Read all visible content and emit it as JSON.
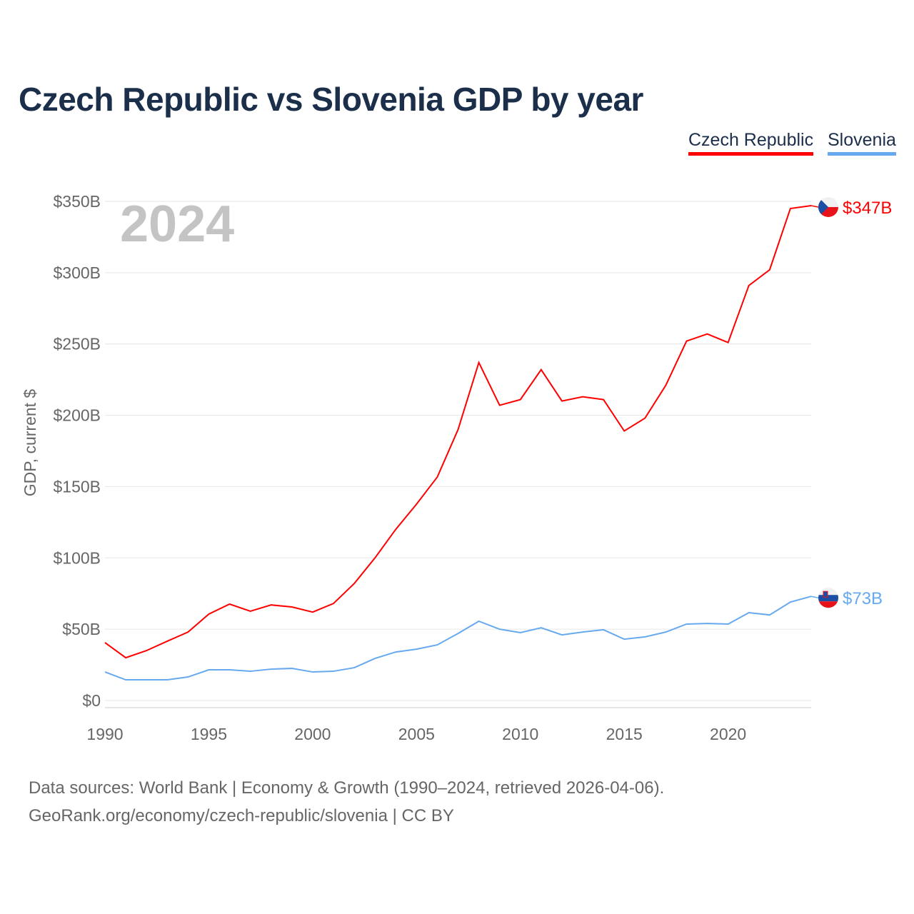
{
  "chart_data": {
    "type": "line",
    "title": "Czech Republic vs Slovenia GDP by year",
    "ylabel": "GDP, current $",
    "xlabel": "",
    "year_label": "2024",
    "x": [
      1990,
      1991,
      1992,
      1993,
      1994,
      1995,
      1996,
      1997,
      1998,
      1999,
      2000,
      2001,
      2002,
      2003,
      2004,
      2005,
      2006,
      2007,
      2008,
      2009,
      2010,
      2011,
      2012,
      2013,
      2014,
      2015,
      2016,
      2017,
      2018,
      2019,
      2020,
      2021,
      2022,
      2023,
      2024
    ],
    "xlim": [
      1990,
      2024
    ],
    "ylim": [
      0,
      350
    ],
    "xticks": [
      1990,
      1995,
      2000,
      2005,
      2010,
      2015,
      2020
    ],
    "yticks": [
      0,
      50,
      100,
      150,
      200,
      250,
      300,
      350
    ],
    "ytick_labels": [
      "$0",
      "$50B",
      "$100B",
      "$150B",
      "$200B",
      "$250B",
      "$300B",
      "$350B"
    ],
    "grid": true,
    "legend_position": "top-right",
    "series": [
      {
        "name": "Czech Republic",
        "color": "#ff0000",
        "end_label": "$347B",
        "flag": "czech-flag",
        "values": [
          40.6,
          30,
          35,
          41.6,
          48,
          60.6,
          67.6,
          62.6,
          67,
          65.6,
          62,
          68,
          82,
          100,
          120,
          137.7,
          156.7,
          190,
          237,
          207,
          211,
          232,
          210,
          213,
          211,
          189,
          198,
          221,
          252,
          257,
          251,
          291,
          302,
          345,
          347
        ]
      },
      {
        "name": "Slovenia",
        "color": "#66a9ef",
        "end_label": "$73B",
        "flag": "slovenia-flag",
        "values": [
          20,
          14.5,
          14.5,
          14.5,
          16.5,
          21.5,
          21.5,
          20.5,
          22,
          22.5,
          20,
          20.5,
          23,
          29.5,
          34,
          36,
          39,
          47,
          55.6,
          50,
          47.6,
          51,
          46,
          48,
          49.6,
          43,
          44.6,
          48,
          53.6,
          54,
          53.6,
          61.6,
          60,
          69,
          73
        ]
      }
    ]
  },
  "footer": {
    "line1": "Data sources: World Bank | Economy & Growth (1990–2024, retrieved 2026-04-06).",
    "line2": "GeoRank.org/economy/czech-republic/slovenia | CC BY"
  }
}
